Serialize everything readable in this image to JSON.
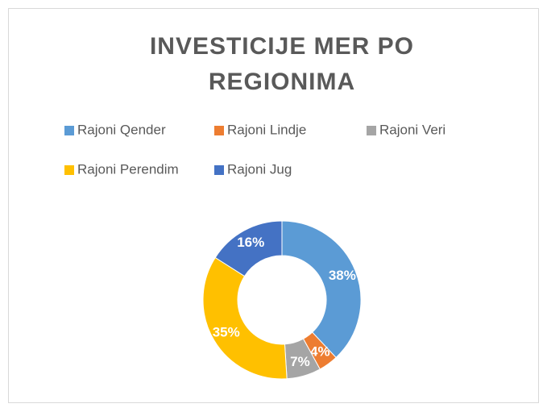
{
  "chart_data": {
    "type": "doughnut",
    "title": "INVESTICIJE MER PO REGIONIMA",
    "categories": [
      "Rajoni Qender",
      "Rajoni Lindje",
      "Rajoni Veri",
      "Rajoni Perendim",
      "Rajoni Jug"
    ],
    "values": [
      38,
      4,
      7,
      35,
      16
    ],
    "value_labels": [
      "38%",
      "4%",
      "7%",
      "35%",
      "16%"
    ],
    "colors": [
      "#5b9bd5",
      "#ed7d31",
      "#a5a5a5",
      "#ffc000",
      "#4472c4"
    ],
    "legend": "top"
  }
}
